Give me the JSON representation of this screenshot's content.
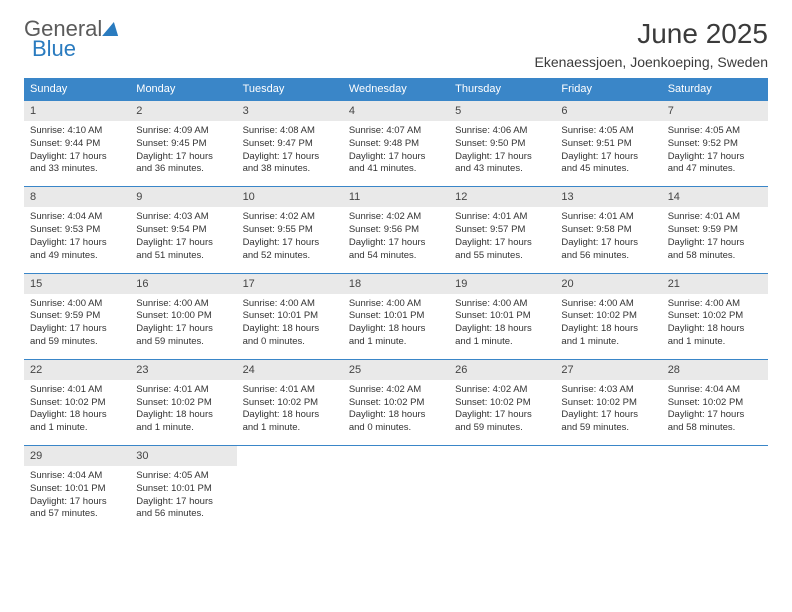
{
  "logo": {
    "word1": "General",
    "word2": "Blue"
  },
  "title": "June 2025",
  "location": "Ekenaessjoen, Joenkoeping, Sweden",
  "colors": {
    "header_bg": "#3a86c8",
    "header_fg": "#ffffff",
    "daynum_bg": "#e9e9e9",
    "row_border": "#3a86c8",
    "logo_gray": "#5b5b5b",
    "logo_blue": "#2a7bbf"
  },
  "day_headers": [
    "Sunday",
    "Monday",
    "Tuesday",
    "Wednesday",
    "Thursday",
    "Friday",
    "Saturday"
  ],
  "weeks": [
    [
      {
        "n": "1",
        "sr": "Sunrise: 4:10 AM",
        "ss": "Sunset: 9:44 PM",
        "d1": "Daylight: 17 hours",
        "d2": "and 33 minutes."
      },
      {
        "n": "2",
        "sr": "Sunrise: 4:09 AM",
        "ss": "Sunset: 9:45 PM",
        "d1": "Daylight: 17 hours",
        "d2": "and 36 minutes."
      },
      {
        "n": "3",
        "sr": "Sunrise: 4:08 AM",
        "ss": "Sunset: 9:47 PM",
        "d1": "Daylight: 17 hours",
        "d2": "and 38 minutes."
      },
      {
        "n": "4",
        "sr": "Sunrise: 4:07 AM",
        "ss": "Sunset: 9:48 PM",
        "d1": "Daylight: 17 hours",
        "d2": "and 41 minutes."
      },
      {
        "n": "5",
        "sr": "Sunrise: 4:06 AM",
        "ss": "Sunset: 9:50 PM",
        "d1": "Daylight: 17 hours",
        "d2": "and 43 minutes."
      },
      {
        "n": "6",
        "sr": "Sunrise: 4:05 AM",
        "ss": "Sunset: 9:51 PM",
        "d1": "Daylight: 17 hours",
        "d2": "and 45 minutes."
      },
      {
        "n": "7",
        "sr": "Sunrise: 4:05 AM",
        "ss": "Sunset: 9:52 PM",
        "d1": "Daylight: 17 hours",
        "d2": "and 47 minutes."
      }
    ],
    [
      {
        "n": "8",
        "sr": "Sunrise: 4:04 AM",
        "ss": "Sunset: 9:53 PM",
        "d1": "Daylight: 17 hours",
        "d2": "and 49 minutes."
      },
      {
        "n": "9",
        "sr": "Sunrise: 4:03 AM",
        "ss": "Sunset: 9:54 PM",
        "d1": "Daylight: 17 hours",
        "d2": "and 51 minutes."
      },
      {
        "n": "10",
        "sr": "Sunrise: 4:02 AM",
        "ss": "Sunset: 9:55 PM",
        "d1": "Daylight: 17 hours",
        "d2": "and 52 minutes."
      },
      {
        "n": "11",
        "sr": "Sunrise: 4:02 AM",
        "ss": "Sunset: 9:56 PM",
        "d1": "Daylight: 17 hours",
        "d2": "and 54 minutes."
      },
      {
        "n": "12",
        "sr": "Sunrise: 4:01 AM",
        "ss": "Sunset: 9:57 PM",
        "d1": "Daylight: 17 hours",
        "d2": "and 55 minutes."
      },
      {
        "n": "13",
        "sr": "Sunrise: 4:01 AM",
        "ss": "Sunset: 9:58 PM",
        "d1": "Daylight: 17 hours",
        "d2": "and 56 minutes."
      },
      {
        "n": "14",
        "sr": "Sunrise: 4:01 AM",
        "ss": "Sunset: 9:59 PM",
        "d1": "Daylight: 17 hours",
        "d2": "and 58 minutes."
      }
    ],
    [
      {
        "n": "15",
        "sr": "Sunrise: 4:00 AM",
        "ss": "Sunset: 9:59 PM",
        "d1": "Daylight: 17 hours",
        "d2": "and 59 minutes."
      },
      {
        "n": "16",
        "sr": "Sunrise: 4:00 AM",
        "ss": "Sunset: 10:00 PM",
        "d1": "Daylight: 17 hours",
        "d2": "and 59 minutes."
      },
      {
        "n": "17",
        "sr": "Sunrise: 4:00 AM",
        "ss": "Sunset: 10:01 PM",
        "d1": "Daylight: 18 hours",
        "d2": "and 0 minutes."
      },
      {
        "n": "18",
        "sr": "Sunrise: 4:00 AM",
        "ss": "Sunset: 10:01 PM",
        "d1": "Daylight: 18 hours",
        "d2": "and 1 minute."
      },
      {
        "n": "19",
        "sr": "Sunrise: 4:00 AM",
        "ss": "Sunset: 10:01 PM",
        "d1": "Daylight: 18 hours",
        "d2": "and 1 minute."
      },
      {
        "n": "20",
        "sr": "Sunrise: 4:00 AM",
        "ss": "Sunset: 10:02 PM",
        "d1": "Daylight: 18 hours",
        "d2": "and 1 minute."
      },
      {
        "n": "21",
        "sr": "Sunrise: 4:00 AM",
        "ss": "Sunset: 10:02 PM",
        "d1": "Daylight: 18 hours",
        "d2": "and 1 minute."
      }
    ],
    [
      {
        "n": "22",
        "sr": "Sunrise: 4:01 AM",
        "ss": "Sunset: 10:02 PM",
        "d1": "Daylight: 18 hours",
        "d2": "and 1 minute."
      },
      {
        "n": "23",
        "sr": "Sunrise: 4:01 AM",
        "ss": "Sunset: 10:02 PM",
        "d1": "Daylight: 18 hours",
        "d2": "and 1 minute."
      },
      {
        "n": "24",
        "sr": "Sunrise: 4:01 AM",
        "ss": "Sunset: 10:02 PM",
        "d1": "Daylight: 18 hours",
        "d2": "and 1 minute."
      },
      {
        "n": "25",
        "sr": "Sunrise: 4:02 AM",
        "ss": "Sunset: 10:02 PM",
        "d1": "Daylight: 18 hours",
        "d2": "and 0 minutes."
      },
      {
        "n": "26",
        "sr": "Sunrise: 4:02 AM",
        "ss": "Sunset: 10:02 PM",
        "d1": "Daylight: 17 hours",
        "d2": "and 59 minutes."
      },
      {
        "n": "27",
        "sr": "Sunrise: 4:03 AM",
        "ss": "Sunset: 10:02 PM",
        "d1": "Daylight: 17 hours",
        "d2": "and 59 minutes."
      },
      {
        "n": "28",
        "sr": "Sunrise: 4:04 AM",
        "ss": "Sunset: 10:02 PM",
        "d1": "Daylight: 17 hours",
        "d2": "and 58 minutes."
      }
    ],
    [
      {
        "n": "29",
        "sr": "Sunrise: 4:04 AM",
        "ss": "Sunset: 10:01 PM",
        "d1": "Daylight: 17 hours",
        "d2": "and 57 minutes."
      },
      {
        "n": "30",
        "sr": "Sunrise: 4:05 AM",
        "ss": "Sunset: 10:01 PM",
        "d1": "Daylight: 17 hours",
        "d2": "and 56 minutes."
      },
      {
        "empty": true
      },
      {
        "empty": true
      },
      {
        "empty": true
      },
      {
        "empty": true
      },
      {
        "empty": true
      }
    ]
  ]
}
